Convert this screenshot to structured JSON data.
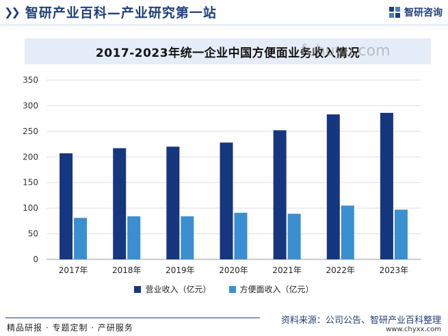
{
  "header": {
    "site_title": "智研产业百科—产业研究第一站",
    "brand": "智研咨询"
  },
  "watermark_url": "fuhuyu.com",
  "chart_data": {
    "type": "bar",
    "title": "2017-2023年统一企业中国方便面业务收入情况",
    "categories": [
      "2017年",
      "2018年",
      "2019年",
      "2020年",
      "2021年",
      "2022年",
      "2023年"
    ],
    "series": [
      {
        "name": "营业收入（亿元）",
        "color": "#16367f",
        "values": [
          207,
          217,
          220,
          228,
          252,
          283,
          286
        ]
      },
      {
        "name": "方便面收入（亿元）",
        "color": "#3a8fd0",
        "values": [
          81,
          84,
          84,
          91,
          89,
          105,
          97
        ]
      }
    ],
    "ylim": [
      0,
      350
    ],
    "yticks": [
      0,
      50,
      100,
      150,
      200,
      250,
      300,
      350
    ],
    "grid": true,
    "legend_position": "bottom"
  },
  "footer": {
    "left": "精品研报 · 专题定制 · 产研服务",
    "source": "资料来源：公司公告、智研产业百科整理",
    "url": "www.chyxx.com"
  }
}
